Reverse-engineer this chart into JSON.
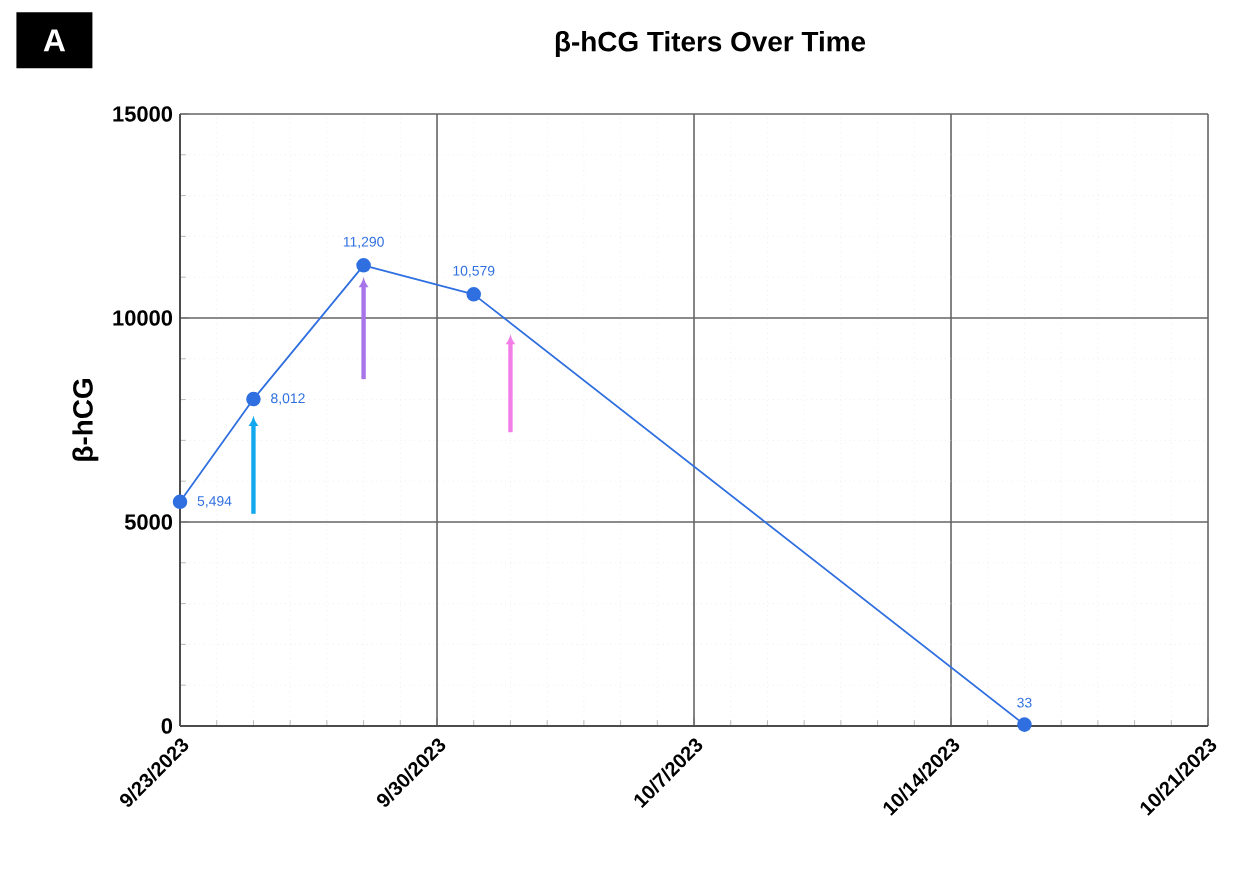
{
  "chart_data": {
    "type": "line",
    "title": "β-hCG Titers Over Time",
    "ylabel": "β-hCG",
    "annotations": [
      "A"
    ],
    "x": [
      "2023-09-23",
      "2023-09-25",
      "2023-09-28",
      "2023-10-01",
      "2023-10-16"
    ],
    "series": [
      {
        "color": "#2f6fe0",
        "values": [
          5494,
          8012,
          11290,
          10579,
          33
        ],
        "value_labels": [
          "5,494",
          "8,012",
          "11,290",
          "10,579",
          "33"
        ]
      }
    ],
    "xlim": [
      "2023-09-23",
      "2023-10-21"
    ],
    "xticks": [
      {
        "value": "2023-09-23",
        "label": "9/23/2023"
      },
      {
        "value": "2023-09-30",
        "label": "9/30/2023"
      },
      {
        "value": "2023-10-07",
        "label": "10/7/2023"
      },
      {
        "value": "2023-10-14",
        "label": "10/14/2023"
      },
      {
        "value": "2023-10-21",
        "label": "10/21/2023"
      }
    ],
    "ylim": [
      0,
      15000
    ],
    "yticks": [
      0,
      5000,
      10000,
      15000
    ],
    "grid": true,
    "marker": "circle",
    "line_style": "solid"
  }
}
